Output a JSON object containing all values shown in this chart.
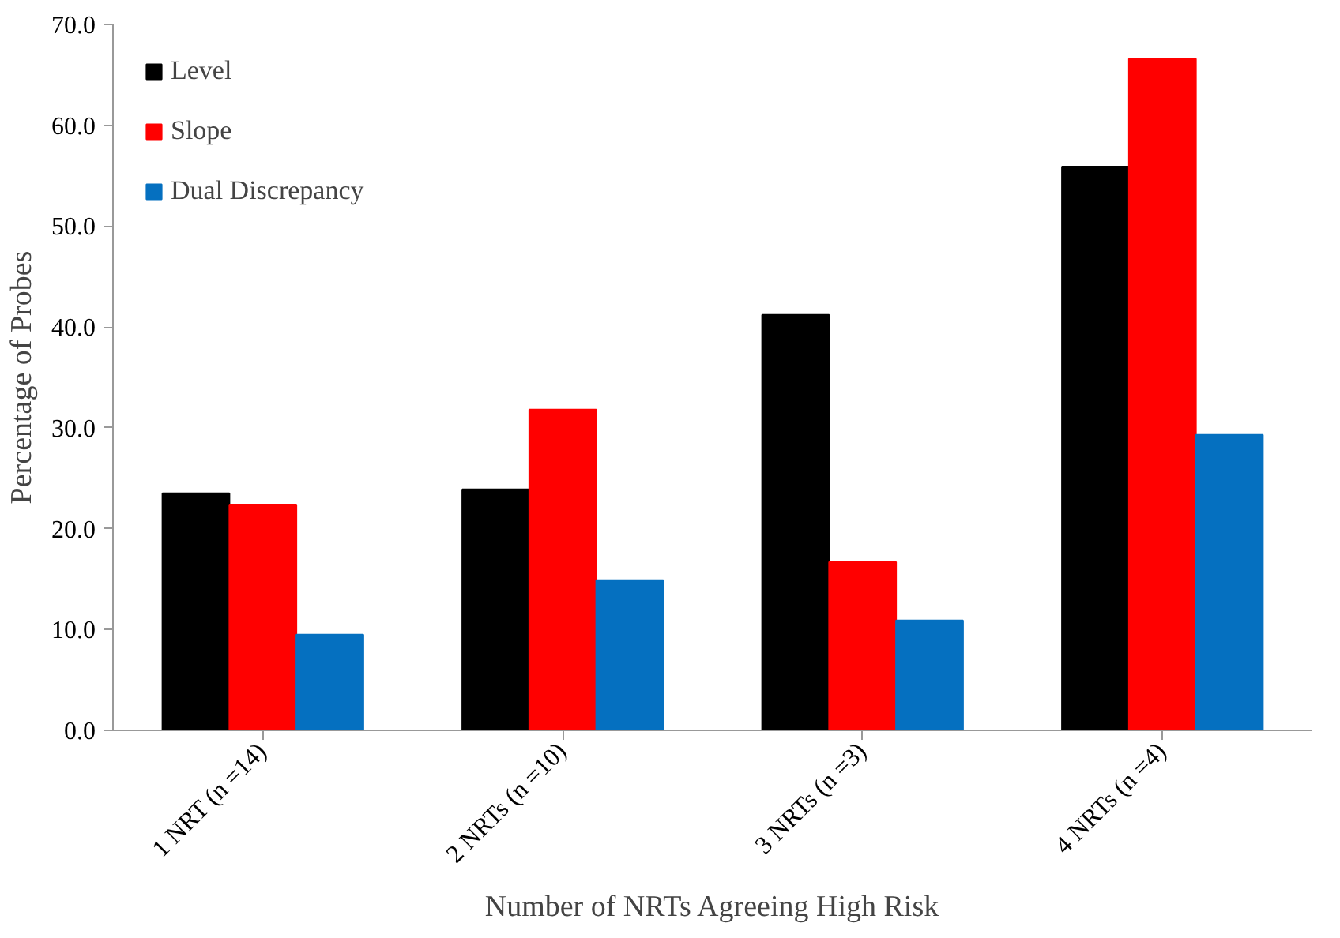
{
  "chart_data": {
    "type": "bar",
    "xlabel": "Number of NRTs Agreeing High Risk",
    "ylabel": "Percentage of Probes",
    "categories": [
      "1 NRT (n =14)",
      "2 NRTs (n =10)",
      "3 NRTs (n =3)",
      "4 NRTs (n =4)"
    ],
    "series": [
      {
        "name": "Level",
        "color": "#000000",
        "values": [
          23.5,
          23.9,
          41.2,
          55.9
        ]
      },
      {
        "name": "Slope",
        "color": "#ff0000",
        "values": [
          22.4,
          31.8,
          16.7,
          66.6
        ]
      },
      {
        "name": "Dual Discrepancy",
        "color": "#0570c0",
        "values": [
          9.5,
          14.9,
          10.9,
          29.3
        ]
      }
    ],
    "ylim": [
      0,
      70
    ],
    "yticks": [
      {
        "value": 0,
        "label": "0.0"
      },
      {
        "value": 10,
        "label": "10.0"
      },
      {
        "value": 20,
        "label": "20.0"
      },
      {
        "value": 30,
        "label": "30.0"
      },
      {
        "value": 40,
        "label": "40.0"
      },
      {
        "value": 50,
        "label": "50.0"
      },
      {
        "value": 60,
        "label": "60.0"
      },
      {
        "value": 70,
        "label": "70.0"
      }
    ],
    "grid": false,
    "legend": "top left"
  }
}
